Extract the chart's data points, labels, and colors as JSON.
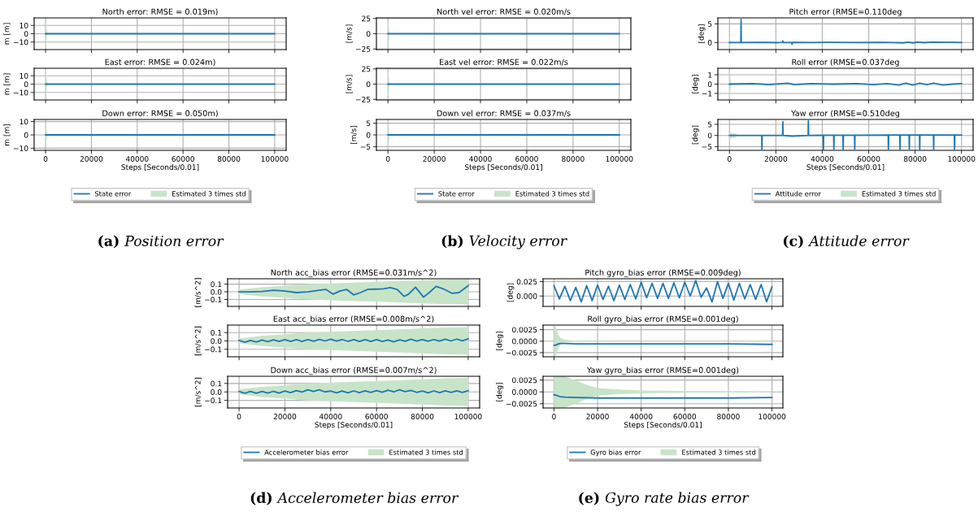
{
  "chart_data": [
    {
      "type": "line",
      "title": "North error: RMSE = 0.019m)",
      "ylabel": "m [m]",
      "xlim": [
        -5000,
        105000
      ],
      "xticks": [
        0,
        20000,
        40000,
        60000,
        80000,
        100000
      ],
      "ylim": [
        -19,
        19
      ],
      "yticks": [
        {
          "value": -10,
          "label": "−10"
        },
        0,
        10
      ],
      "grid": true,
      "tick_labels": "y",
      "series": [
        {
          "color": "#1f77b4",
          "x": [
            0,
            20000,
            40000,
            60000,
            80000,
            100000
          ],
          "values": [
            0,
            0,
            0,
            0,
            0,
            0
          ]
        },
        {
          "color": "#c8e4c8",
          "x": [
            0,
            300,
            600,
            1000,
            100000
          ],
          "values": [
            null,
            null,
            null,
            null,
            null
          ],
          "lower": [
            -18,
            -12,
            -3,
            -0.3,
            -0.2
          ],
          "upper": [
            18,
            12,
            3,
            0.3,
            0.2
          ]
        }
      ]
    },
    {
      "type": "line",
      "title": "East error: RMSE = 0.024m)",
      "ylabel": "m [m]",
      "xlim": [
        -5000,
        105000
      ],
      "xticks": [
        0,
        20000,
        40000,
        60000,
        80000,
        100000
      ],
      "ylim": [
        -19,
        19
      ],
      "yticks": [
        {
          "value": -10,
          "label": "−10"
        },
        0,
        10
      ],
      "grid": true,
      "tick_labels": "y",
      "series": [
        {
          "color": "#1f77b4",
          "x": [
            0,
            20000,
            40000,
            60000,
            80000,
            100000
          ],
          "values": [
            0,
            0,
            0,
            0,
            0,
            0
          ]
        },
        {
          "color": "#c8e4c8",
          "x": [
            0,
            300,
            600,
            1000,
            100000
          ],
          "values": [
            null,
            null,
            null,
            null,
            null
          ],
          "lower": [
            -18,
            -12,
            -3,
            -0.3,
            -0.2
          ],
          "upper": [
            18,
            12,
            3,
            0.3,
            0.2
          ]
        }
      ]
    },
    {
      "type": "line",
      "title": "Down error: RMSE = 0.050m)",
      "xlabel": "Steps [Seconds/0.01]",
      "ylabel": "m [m]",
      "xlim": [
        -5000,
        105000
      ],
      "xticks": [
        0,
        20000,
        40000,
        60000,
        80000,
        100000
      ],
      "ylim": [
        -11.6,
        11.6
      ],
      "yticks": [
        {
          "value": -10,
          "label": "−10"
        },
        0,
        10
      ],
      "grid": true,
      "legend": "bottom",
      "annotations": [
        "(a) Position error"
      ],
      "series": [
        {
          "name": "State error",
          "color": "#1f77b4",
          "x": [
            0,
            20000,
            40000,
            60000,
            80000,
            100000
          ],
          "values": [
            0,
            0,
            0,
            0,
            0,
            0
          ]
        },
        {
          "name": "Estimated 3 times std",
          "color": "#c8e4c8",
          "x": [
            0,
            300,
            600,
            1000,
            100000
          ],
          "values": [
            null,
            null,
            null,
            null,
            null
          ],
          "lower": [
            -11,
            -5,
            -2,
            -0.3,
            -0.2
          ],
          "upper": [
            11,
            5,
            2,
            0.3,
            0.2
          ]
        }
      ]
    },
    {
      "type": "line",
      "title": "North vel error: RMSE = 0.020m/s",
      "ylabel": "[m/s]",
      "xlim": [
        -5000,
        105000
      ],
      "xticks": [
        0,
        20000,
        40000,
        60000,
        80000,
        100000
      ],
      "ylim": [
        -26,
        26
      ],
      "yticks": [
        {
          "value": -25,
          "label": "−25"
        },
        0,
        25
      ],
      "grid": true,
      "tick_labels": "y",
      "series": [
        {
          "color": "#1f77b4",
          "x": [
            0,
            20000,
            40000,
            60000,
            80000,
            100000
          ],
          "values": [
            0,
            0,
            0,
            0,
            0,
            0
          ]
        },
        {
          "color": "#c8e4c8",
          "x": [
            0,
            300,
            600,
            1000,
            100000
          ],
          "values": [
            null,
            null,
            null,
            null,
            null
          ],
          "lower": [
            -25,
            -15,
            -3,
            -0.3,
            -0.1
          ],
          "upper": [
            25,
            15,
            3,
            0.3,
            0.1
          ]
        }
      ]
    },
    {
      "type": "line",
      "title": "East vel error: RMSE = 0.022m/s",
      "ylabel": "[m/s]",
      "xlim": [
        -5000,
        105000
      ],
      "xticks": [
        0,
        20000,
        40000,
        60000,
        80000,
        100000
      ],
      "ylim": [
        -26,
        26
      ],
      "yticks": [
        {
          "value": -25,
          "label": "−25"
        },
        0,
        25
      ],
      "grid": true,
      "tick_labels": "y",
      "series": [
        {
          "color": "#1f77b4",
          "x": [
            0,
            20000,
            40000,
            60000,
            80000,
            100000
          ],
          "values": [
            0,
            0,
            0,
            0,
            0,
            0
          ]
        },
        {
          "color": "#c8e4c8",
          "x": [
            0,
            300,
            600,
            1000,
            100000
          ],
          "values": [
            null,
            null,
            null,
            null,
            null
          ],
          "lower": [
            -25,
            -15,
            -3,
            -0.3,
            -0.1
          ],
          "upper": [
            25,
            15,
            3,
            0.3,
            0.1
          ]
        }
      ]
    },
    {
      "type": "line",
      "title": "Down vel error: RMSE = 0.037m/s",
      "xlabel": "Steps [Seconds/0.01]",
      "ylabel": "[m/s]",
      "xlim": [
        -5000,
        105000
      ],
      "xticks": [
        0,
        20000,
        40000,
        60000,
        80000,
        100000
      ],
      "ylim": [
        -6.6,
        6.6
      ],
      "yticks": [
        {
          "value": -5,
          "label": "−5"
        },
        0,
        5
      ],
      "grid": true,
      "legend": "bottom",
      "annotations": [
        "(b) Velocity error"
      ],
      "series": [
        {
          "name": "State error",
          "color": "#1f77b4",
          "x": [
            0,
            20000,
            40000,
            60000,
            80000,
            100000
          ],
          "values": [
            0,
            0,
            0,
            0,
            0,
            0
          ]
        },
        {
          "name": "Estimated 3 times std",
          "color": "#c8e4c8",
          "x": [
            0,
            300,
            600,
            1000,
            100000
          ],
          "values": [
            null,
            null,
            null,
            null,
            null
          ],
          "lower": [
            -6.5,
            -4,
            -1,
            -0.2,
            -0.1
          ],
          "upper": [
            6.5,
            4,
            1,
            0.2,
            0.1
          ]
        }
      ]
    },
    {
      "type": "line",
      "title": "Pitch error (RMSE=0.110deg",
      "ylabel": "[deg]",
      "xlim": [
        -5000,
        105000
      ],
      "xticks": [
        0,
        20000,
        40000,
        60000,
        80000,
        100000
      ],
      "ylim": [
        -1.9,
        6.6
      ],
      "yticks": [
        0,
        5
      ],
      "grid": true,
      "tick_labels": "y",
      "series": [
        {
          "color": "#1f77b4",
          "x": [
            0,
            4900,
            5000,
            5100,
            15000,
            20000,
            22800,
            23000,
            23200,
            26800,
            27000,
            27200,
            35000,
            45000,
            55000,
            65000,
            70000,
            75000,
            77000,
            79000,
            81000,
            84000,
            87000,
            92000,
            97000,
            100000
          ],
          "values": [
            0,
            0,
            6.2,
            0,
            0.05,
            -0.05,
            0.05,
            0.4,
            0,
            0,
            -0.5,
            0.05,
            0,
            0.05,
            0,
            0.05,
            0,
            -0.1,
            0.1,
            -0.1,
            0.1,
            -0.05,
            0.1,
            0.05,
            0.05,
            0
          ]
        },
        {
          "color": "#c8e4c8",
          "x": [
            0,
            300,
            600,
            1000,
            100000
          ],
          "values": [
            null,
            null,
            null,
            null,
            null
          ],
          "lower": [
            -1.6,
            -1,
            -0.3,
            -0.1,
            -0.05
          ],
          "upper": [
            1.6,
            1,
            0.3,
            0.1,
            0.05
          ]
        }
      ]
    },
    {
      "type": "line",
      "title": "Roll error (RMSE=0.037deg",
      "ylabel": "[deg]",
      "xlim": [
        -5000,
        105000
      ],
      "xticks": [
        0,
        20000,
        40000,
        60000,
        80000,
        100000
      ],
      "ylim": [
        -1.7,
        1.7
      ],
      "yticks": [
        {
          "value": -1,
          "label": "−1"
        },
        0,
        1
      ],
      "grid": true,
      "tick_labels": "y",
      "series": [
        {
          "color": "#1f77b4",
          "x": [
            0,
            10000,
            17000,
            25000,
            28000,
            35000,
            45000,
            55000,
            62000,
            68000,
            73000,
            76000,
            79000,
            82000,
            85000,
            88000,
            92000,
            96000,
            100000
          ],
          "values": [
            0,
            0.05,
            -0.05,
            0.1,
            -0.05,
            0.05,
            0,
            0.05,
            -0.05,
            0.05,
            -0.1,
            0.1,
            -0.1,
            0.1,
            -0.05,
            0.1,
            -0.1,
            0,
            0.05
          ]
        },
        {
          "color": "#c8e4c8",
          "x": [
            0,
            300,
            600,
            1000,
            100000
          ],
          "values": [
            null,
            null,
            null,
            null,
            null
          ],
          "lower": [
            -1.7,
            -1,
            -0.3,
            -0.1,
            -0.05
          ],
          "upper": [
            1.7,
            1,
            0.3,
            0.1,
            0.05
          ]
        }
      ]
    },
    {
      "type": "line",
      "title": "Yaw error (RMSE=0.510deg",
      "xlabel": "Steps [Seconds/0.01]",
      "ylabel": "[deg]",
      "xlim": [
        -5000,
        105000
      ],
      "xticks": [
        0,
        20000,
        40000,
        60000,
        80000,
        100000
      ],
      "ylim": [
        -6.7,
        7.2
      ],
      "yticks": [
        {
          "value": -5,
          "label": "−5"
        },
        0,
        5
      ],
      "grid": true,
      "legend": "bottom",
      "annotations": [
        "(c) Attitude error"
      ],
      "series": [
        {
          "name": "Attitude error",
          "color": "#1f77b4",
          "x": [
            0,
            13900,
            14000,
            14100,
            22900,
            23000,
            23100,
            27000,
            33900,
            34000,
            34100,
            40400,
            40500,
            40600,
            44900,
            45000,
            45100,
            48900,
            49000,
            49100,
            53900,
            54000,
            54100,
            68400,
            68500,
            68600,
            73400,
            73500,
            73600,
            77400,
            77500,
            77600,
            81900,
            82000,
            82100,
            87900,
            88000,
            88100,
            96900,
            97000,
            97100,
            100000
          ],
          "values": [
            0,
            0,
            -6.3,
            0,
            0,
            6.2,
            0,
            -0.3,
            0,
            6.6,
            0,
            0.1,
            -6.3,
            0.1,
            0.1,
            -6.3,
            0.1,
            0.1,
            -6.3,
            0.1,
            0.1,
            -6.3,
            0.1,
            0.2,
            -6.3,
            0.2,
            0.2,
            -6.3,
            0.2,
            0.2,
            -6.3,
            0.2,
            0.2,
            -6.3,
            0.2,
            0.2,
            -6.3,
            0.2,
            0.2,
            -6.3,
            0.2,
            0.2
          ]
        },
        {
          "name": "Estimated 3 times std",
          "color": "#c8e4c8",
          "x": [
            0,
            2500,
            3500,
            100000
          ],
          "values": [
            null,
            null,
            null,
            null
          ],
          "lower": [
            -1.3,
            -1,
            -0.1,
            -0.05
          ],
          "upper": [
            1.3,
            1,
            0.1,
            0.05
          ]
        }
      ]
    },
    {
      "type": "line",
      "title": "North acc_bias error (RMSE=0.031m/s^2)",
      "ylabel": "[m/s^2]",
      "xlim": [
        -5000,
        105000
      ],
      "xticks": [
        0,
        20000,
        40000,
        60000,
        80000,
        100000
      ],
      "ylim": [
        -0.19,
        0.17
      ],
      "yticks": [
        {
          "value": -0.1,
          "label": "−0.1"
        },
        {
          "value": 0,
          "label": "0.0"
        },
        0.1
      ],
      "grid": true,
      "tick_labels": "y",
      "series": [
        {
          "color": "#1f77b4",
          "x": [
            0,
            5000,
            10000,
            15000,
            20000,
            25000,
            30000,
            35000,
            38000,
            41000,
            44000,
            47000,
            50000,
            53000,
            56000,
            60000,
            63000,
            66000,
            69000,
            72000,
            74000,
            77000,
            80500,
            83000,
            86000,
            89000,
            93000,
            96000,
            100000
          ],
          "values": [
            0,
            0,
            0.005,
            0.02,
            0.01,
            -0.01,
            0,
            0.02,
            0.03,
            -0.03,
            0.01,
            0.03,
            -0.04,
            -0.01,
            0.03,
            0.035,
            0.04,
            0.055,
            0.03,
            -0.06,
            -0.03,
            0.06,
            -0.07,
            -0.01,
            0.07,
            0.04,
            -0.02,
            -0.01,
            0.08
          ]
        },
        {
          "color": "#c8e4c8",
          "x": [
            0,
            10000,
            20000,
            30000,
            40000,
            50000,
            60000,
            70000,
            80000,
            90000,
            100000
          ],
          "values": [
            null,
            null,
            null,
            null,
            null,
            null,
            null,
            null,
            null,
            null,
            null
          ],
          "lower": [
            -0.03,
            -0.06,
            -0.08,
            -0.1,
            -0.11,
            -0.12,
            -0.13,
            -0.14,
            -0.15,
            -0.16,
            -0.165
          ],
          "upper": [
            0.03,
            0.06,
            0.08,
            0.1,
            0.11,
            0.12,
            0.13,
            0.14,
            0.15,
            0.16,
            0.165
          ]
        }
      ]
    },
    {
      "type": "line",
      "title": "East acc_bias error (RMSE=0.008m/s^2)",
      "ylabel": "[m/s^2]",
      "xlim": [
        -5000,
        105000
      ],
      "xticks": [
        0,
        20000,
        40000,
        60000,
        80000,
        100000
      ],
      "ylim": [
        -0.19,
        0.19
      ],
      "yticks": [
        {
          "value": -0.1,
          "label": "−0.1"
        },
        {
          "value": 0,
          "label": "0.0"
        },
        0.1
      ],
      "grid": true,
      "tick_labels": "y",
      "series": [
        {
          "color": "#1f77b4",
          "x": [
            0,
            2500,
            5000,
            7500,
            10000,
            12500,
            15000,
            17500,
            20000,
            22500,
            25000,
            27500,
            30000,
            32500,
            35000,
            37500,
            40000,
            42500,
            45000,
            47500,
            50000,
            52500,
            55000,
            57500,
            60000,
            62500,
            65000,
            67500,
            70000,
            72500,
            75000,
            77500,
            80000,
            82500,
            85000,
            87500,
            90000,
            92500,
            95000,
            97500,
            100000
          ],
          "values": [
            0.005,
            -0.015,
            0.007,
            -0.013,
            0.01,
            -0.009,
            0.013,
            -0.007,
            0.015,
            -0.005,
            0.015,
            -0.005,
            0.015,
            -0.003,
            0.018,
            0,
            0.02,
            -0.002,
            0.017,
            -0.005,
            0.015,
            -0.005,
            0.015,
            -0.005,
            0.015,
            -0.007,
            0.01,
            -0.01,
            0.013,
            -0.003,
            0.02,
            -0.002,
            0.015,
            -0.004,
            0.017,
            -0.002,
            0.02,
            0,
            0.022,
            0.002,
            0.025
          ]
        },
        {
          "color": "#c8e4c8",
          "x": [
            0,
            10000,
            20000,
            30000,
            40000,
            50000,
            60000,
            70000,
            80000,
            90000,
            100000
          ],
          "values": [
            null,
            null,
            null,
            null,
            null,
            null,
            null,
            null,
            null,
            null,
            null
          ],
          "lower": [
            -0.03,
            -0.06,
            -0.08,
            -0.1,
            -0.11,
            -0.12,
            -0.13,
            -0.14,
            -0.15,
            -0.16,
            -0.165
          ],
          "upper": [
            0.03,
            0.06,
            0.08,
            0.1,
            0.11,
            0.12,
            0.13,
            0.14,
            0.15,
            0.16,
            0.165
          ]
        }
      ]
    },
    {
      "type": "line",
      "title": "Down acc_bias error (RMSE=0.007m/s^2)",
      "xlabel": "Steps [Seconds/0.01]",
      "ylabel": "[m/s^2]",
      "xlim": [
        -5000,
        105000
      ],
      "xticks": [
        0,
        20000,
        40000,
        60000,
        80000,
        100000
      ],
      "ylim": [
        -0.19,
        0.185
      ],
      "yticks": [
        {
          "value": -0.1,
          "label": "−0.1"
        },
        {
          "value": 0,
          "label": "0.0"
        },
        0.1
      ],
      "grid": true,
      "legend": "bottom",
      "annotations": [
        "(d) Accelerometer bias error"
      ],
      "series": [
        {
          "name": "Accelerometer bias error",
          "color": "#1f77b4",
          "x": [
            0,
            2500,
            5000,
            7500,
            10000,
            12500,
            15000,
            17500,
            20000,
            22500,
            25000,
            27500,
            30000,
            32500,
            35000,
            37500,
            40000,
            42500,
            45000,
            47500,
            50000,
            52500,
            55000,
            57500,
            60000,
            62500,
            65000,
            67500,
            70000,
            72500,
            75000,
            77500,
            80000,
            82500,
            85000,
            87500,
            90000,
            92500,
            95000,
            97500,
            100000
          ],
          "values": [
            0.005,
            -0.015,
            0.005,
            -0.015,
            0.006,
            -0.014,
            0.007,
            -0.013,
            0.01,
            -0.008,
            0.015,
            -0.002,
            0.025,
            0.005,
            0.025,
            0,
            0.01,
            -0.01,
            0.01,
            -0.01,
            0.012,
            -0.008,
            0.013,
            -0.007,
            0.015,
            -0.004,
            0.02,
            0,
            0.025,
            0.003,
            0.018,
            -0.005,
            0.01,
            -0.01,
            0.012,
            -0.008,
            0.013,
            -0.007,
            0.013,
            -0.007,
            0.015
          ]
        },
        {
          "name": "Estimated 3 times std",
          "color": "#c8e4c8",
          "x": [
            0,
            10000,
            20000,
            30000,
            40000,
            50000,
            60000,
            70000,
            80000,
            90000,
            100000
          ],
          "values": [
            null,
            null,
            null,
            null,
            null,
            null,
            null,
            null,
            null,
            null,
            null
          ],
          "lower": [
            -0.03,
            -0.06,
            -0.08,
            -0.1,
            -0.11,
            -0.12,
            -0.13,
            -0.14,
            -0.15,
            -0.16,
            -0.165
          ],
          "upper": [
            0.03,
            0.06,
            0.08,
            0.1,
            0.11,
            0.12,
            0.13,
            0.14,
            0.15,
            0.16,
            0.165
          ]
        }
      ]
    },
    {
      "type": "line",
      "title": "Pitch gyro_bias error (RMSE=0.009deg)",
      "ylabel": "[deg]",
      "xlim": [
        -5000,
        105000
      ],
      "xticks": [
        0,
        20000,
        40000,
        60000,
        80000,
        100000
      ],
      "ylim": [
        -0.018,
        0.03
      ],
      "yticks": [
        {
          "value": 0,
          "label": "0.000"
        },
        0.025
      ],
      "grid": true,
      "tick_labels": "y",
      "series": [
        {
          "color": "#1f77b4",
          "x": [
            0,
            2500,
            5000,
            7500,
            10000,
            12500,
            15000,
            17500,
            20000,
            22500,
            25000,
            27500,
            30000,
            32500,
            35000,
            37500,
            40000,
            42500,
            45000,
            47500,
            50000,
            52500,
            55000,
            57500,
            60000,
            62500,
            65000,
            67500,
            70000,
            72500,
            75000,
            77500,
            80000,
            82500,
            85000,
            87500,
            90000,
            92500,
            95000,
            97500,
            100000
          ],
          "values": [
            0.018,
            -0.005,
            0.017,
            -0.008,
            0.015,
            -0.01,
            0.018,
            -0.008,
            0.019,
            -0.006,
            0.017,
            -0.008,
            0.019,
            -0.006,
            0.02,
            -0.005,
            0.024,
            -0.003,
            0.022,
            -0.004,
            0.022,
            -0.004,
            0.023,
            -0.003,
            0.024,
            0,
            0.027,
            -0.002,
            0.014,
            -0.01,
            0.025,
            -0.004,
            0.022,
            -0.007,
            0.022,
            -0.005,
            0.02,
            -0.006,
            0.02,
            -0.01,
            0.016
          ]
        }
      ]
    },
    {
      "type": "line",
      "title": "Roll gyro_bias error (RMSE=0.001deg)",
      "ylabel": "[deg]",
      "xlim": [
        -5000,
        105000
      ],
      "xticks": [
        0,
        20000,
        40000,
        60000,
        80000,
        100000
      ],
      "ylim": [
        -0.0034,
        0.0035
      ],
      "yticks": [
        {
          "value": -0.0025,
          "label": "−0.0025"
        },
        {
          "value": 0,
          "label": "0.0000"
        },
        0.0025
      ],
      "grid": true,
      "tick_labels": "y",
      "series": [
        {
          "color": "#1f77b4",
          "x": [
            0,
            500,
            1000,
            2000,
            3000,
            5000,
            10000,
            20000,
            40000,
            60000,
            80000,
            100000
          ],
          "values": [
            -0.0009,
            -0.0009,
            -0.0008,
            -0.0006,
            -0.0005,
            -0.0005,
            -0.0006,
            -0.0006,
            -0.0006,
            -0.0006,
            -0.0006,
            -0.0007
          ]
        },
        {
          "color": "#c8e4c8",
          "x": [
            0,
            1000,
            2000,
            3000,
            5000,
            8000,
            12000,
            20000,
            40000,
            100000
          ],
          "values": [
            null,
            null,
            null,
            null,
            null,
            null,
            null,
            null,
            null,
            null
          ],
          "lower": [
            -0.0034,
            -0.003,
            -0.0015,
            -0.0007,
            -0.0003,
            -0.0002,
            -0.0001,
            -8e-05,
            -5e-05,
            -3e-05
          ],
          "upper": [
            0.0034,
            0.003,
            0.0015,
            0.0007,
            0.0003,
            0.0002,
            0.0001,
            8e-05,
            5e-05,
            3e-05
          ]
        }
      ]
    },
    {
      "type": "line",
      "title": "Yaw gyro_bias error (RMSE=0.001deg)",
      "xlabel": "Steps [Seconds/0.01]",
      "ylabel": "[deg]",
      "xlim": [
        -5000,
        105000
      ],
      "xticks": [
        0,
        20000,
        40000,
        60000,
        80000,
        100000
      ],
      "ylim": [
        -0.0034,
        0.0033
      ],
      "yticks": [
        {
          "value": -0.0025,
          "label": "−0.0025"
        },
        {
          "value": 0,
          "label": "0.0000"
        },
        0.0025
      ],
      "grid": true,
      "legend": "bottom",
      "annotations": [
        "(e) Gyro rate bias error"
      ],
      "series": [
        {
          "name": "Gyro bias error",
          "color": "#1f77b4",
          "x": [
            0,
            1000,
            2000,
            3000,
            5000,
            10000,
            20000,
            40000,
            60000,
            80000,
            100000
          ],
          "values": [
            -0.0006,
            -0.0007,
            -0.0009,
            -0.001,
            -0.0011,
            -0.0012,
            -0.0013,
            -0.0013,
            -0.0013,
            -0.0013,
            -0.0012
          ]
        },
        {
          "name": "Estimated 3 times std",
          "color": "#c8e4c8",
          "x": [
            0,
            5000,
            10000,
            15000,
            20000,
            30000,
            40000,
            60000,
            100000
          ],
          "values": [
            null,
            null,
            null,
            null,
            null,
            null,
            null,
            null,
            null
          ],
          "lower": [
            -0.0033,
            -0.0033,
            -0.0025,
            -0.0015,
            -0.0008,
            -0.0005,
            -0.0003,
            -0.0002,
            -0.0001
          ],
          "upper": [
            0.0033,
            0.0033,
            0.0025,
            0.0015,
            0.0008,
            0.0005,
            0.0003,
            0.0002,
            0.0001
          ]
        }
      ]
    }
  ]
}
